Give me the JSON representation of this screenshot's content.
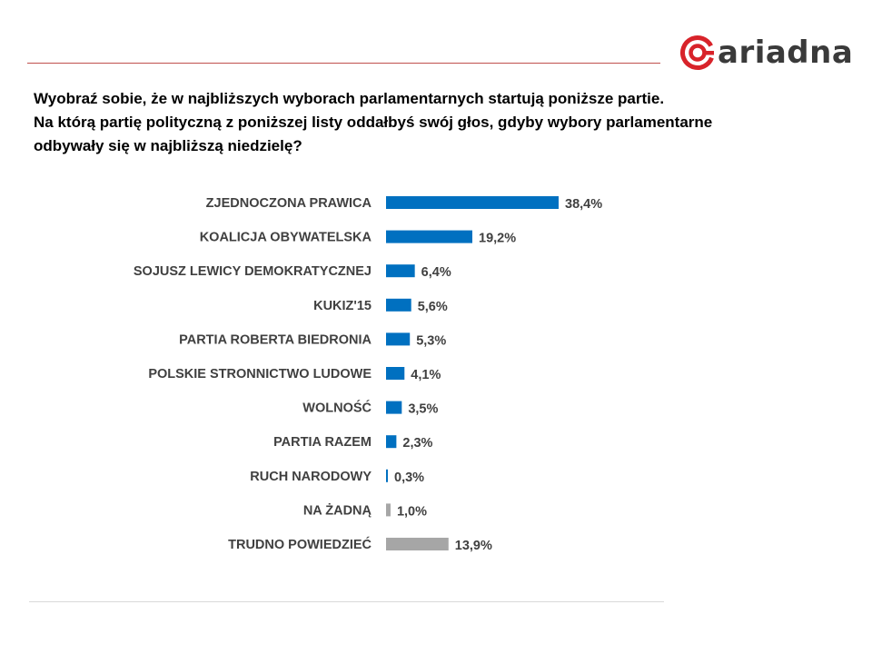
{
  "question": {
    "line1": "Wyobraź sobie, że w najbliższych wyborach parlamentarnych startują poniższe partie.",
    "line2": "Na którą partię polityczną z poniższej listy oddałbyś swój głos, gdyby wybory parlamentarne",
    "line3": "odbywały się w najbliższą niedzielę?"
  },
  "logo": {
    "text": "ariadna",
    "icon": "ariadna-logo-icon",
    "color": "#d8232a"
  },
  "colors": {
    "party": "#0070c0",
    "other": "#a6a6a6",
    "rule": "#c0504d"
  },
  "chart_data": {
    "type": "bar",
    "orientation": "horizontal",
    "title": "",
    "xlabel": "",
    "ylabel": "",
    "unit": "%",
    "xlim": [
      0,
      38.4
    ],
    "grid": false,
    "legend": "none",
    "categories": [
      "ZJEDNOCZONA PRAWICA",
      "KOALICJA OBYWATELSKA",
      "SOJUSZ LEWICY DEMOKRATYCZNEJ",
      "KUKIZ'15",
      "PARTIA ROBERTA BIEDRONIA",
      "POLSKIE STRONNICTWO LUDOWE",
      "WOLNOŚĆ",
      "PARTIA RAZEM",
      "RUCH NARODOWY",
      "NA ŻADNĄ",
      "TRUDNO POWIEDZIEĆ"
    ],
    "values": [
      38.4,
      19.2,
      6.4,
      5.6,
      5.3,
      4.1,
      3.5,
      2.3,
      0.3,
      1.0,
      13.9
    ],
    "labels": [
      "38,4%",
      "19,2%",
      "6,4%",
      "5,6%",
      "5,3%",
      "4,1%",
      "3,5%",
      "2,3%",
      "0,3%",
      "1,0%",
      "13,9%"
    ],
    "colors": [
      "#0070c0",
      "#0070c0",
      "#0070c0",
      "#0070c0",
      "#0070c0",
      "#0070c0",
      "#0070c0",
      "#0070c0",
      "#0070c0",
      "#a6a6a6",
      "#a6a6a6"
    ]
  }
}
